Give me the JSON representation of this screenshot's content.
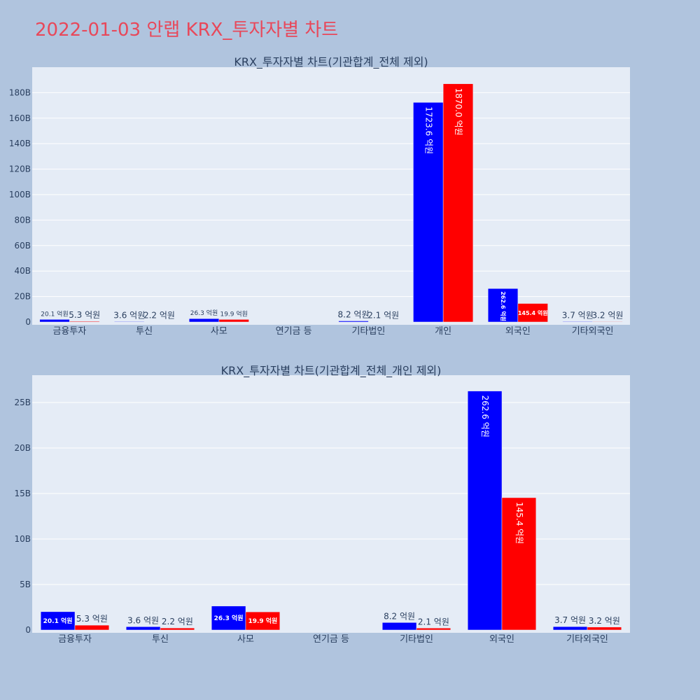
{
  "main_title": "2022-01-03 안랩 KRX_투자자별 차트",
  "colors": {
    "sell": "#0000ff",
    "buy": "#ff0000",
    "panel": "#e5ecf6",
    "page": "#b0c4de",
    "title": "#e8485a",
    "text": "#2a3f5f"
  },
  "chart_data": [
    {
      "type": "bar",
      "title": "KRX_투자자별 차트(기관합계_전체 제외)",
      "categories": [
        "금융투자",
        "투신",
        "사모",
        "연기금 등",
        "기타법인",
        "개인",
        "외국인",
        "기타외국인"
      ],
      "series": [
        {
          "values": [
            2.01,
            0.36,
            2.63,
            0.0,
            0.82,
            172.36,
            26.26,
            0.37
          ],
          "labels": [
            "20.1 억원",
            "3.6 억원",
            "26.3 억원",
            "",
            "8.2 억원",
            "1723.6 억원",
            "262.6 억원",
            "3.7 억원"
          ]
        },
        {
          "values": [
            0.53,
            0.22,
            1.99,
            0.0,
            0.21,
            187.0,
            14.54,
            0.32
          ],
          "labels": [
            "5.3 억원",
            "2.2 억원",
            "19.9 억원",
            "",
            "2.1 억원",
            "1870.0 억원",
            "145.4 억원",
            "3.2 억원"
          ]
        }
      ],
      "yticks": [
        "0",
        "20B",
        "40B",
        "60B",
        "80B",
        "100B",
        "120B",
        "140B",
        "160B",
        "180B"
      ],
      "ylim": [
        0,
        200
      ],
      "grid": true
    },
    {
      "type": "bar",
      "title": "KRX_투자자별 차트(기관합계_전체_개인 제외)",
      "categories": [
        "금융투자",
        "투신",
        "사모",
        "연기금 등",
        "기타법인",
        "외국인",
        "기타외국인"
      ],
      "series": [
        {
          "values": [
            2.01,
            0.36,
            2.63,
            0.0,
            0.82,
            26.26,
            0.37
          ],
          "labels": [
            "20.1 억원",
            "3.6 억원",
            "26.3 억원",
            "",
            "8.2 억원",
            "262.6 억원",
            "3.7 억원"
          ]
        },
        {
          "values": [
            0.53,
            0.22,
            1.99,
            0.0,
            0.21,
            14.54,
            0.32
          ],
          "labels": [
            "5.3 억원",
            "2.2 억원",
            "19.9 억원",
            "",
            "2.1 억원",
            "145.4 억원",
            "3.2 억원"
          ]
        }
      ],
      "yticks": [
        "0",
        "5B",
        "10B",
        "15B",
        "20B",
        "25B"
      ],
      "ylim": [
        0,
        28
      ],
      "grid": true
    }
  ]
}
